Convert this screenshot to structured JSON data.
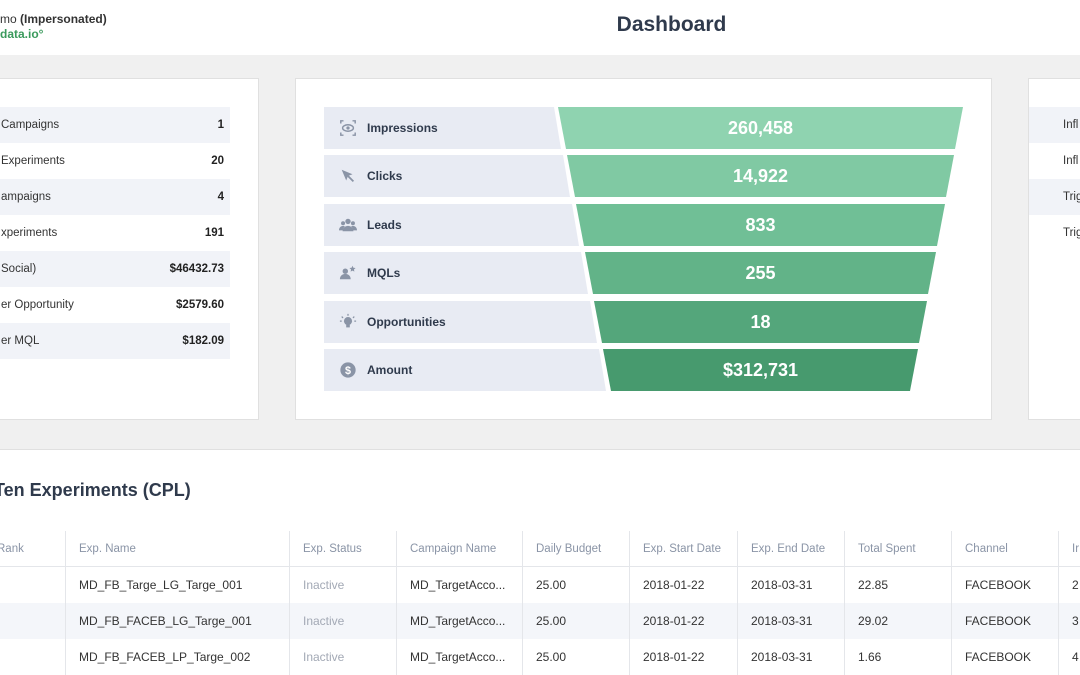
{
  "header": {
    "user_prefix": "mo",
    "user_suffix": "(Impersonated)",
    "domain": "data.io°",
    "title": "Dashboard"
  },
  "stats_left": [
    {
      "label": "Campaigns",
      "value": "1"
    },
    {
      "label": "Experiments",
      "value": "20"
    },
    {
      "label": "ampaigns",
      "value": "4"
    },
    {
      "label": "xperiments",
      "value": "191"
    },
    {
      "label": "Social)",
      "value": "$46432.73"
    },
    {
      "label": "er Opportunity",
      "value": "$2579.60"
    },
    {
      "label": "er MQL",
      "value": "$182.09"
    }
  ],
  "stats_right": [
    "Infl",
    "Infl",
    "Trig",
    "Trig"
  ],
  "funnel": [
    {
      "label": "Impressions",
      "value": "260,458",
      "icon": "eye-icon",
      "color": "#8fd3b0"
    },
    {
      "label": "Clicks",
      "value": "14,922",
      "icon": "cursor-icon",
      "color": "#80c9a3"
    },
    {
      "label": "Leads",
      "value": "833",
      "icon": "users-icon",
      "color": "#70bf96"
    },
    {
      "label": "MQLs",
      "value": "255",
      "icon": "user-star-icon",
      "color": "#62b388"
    },
    {
      "label": "Opportunities",
      "value": "18",
      "icon": "lightbulb-icon",
      "color": "#54a67b"
    },
    {
      "label": "Amount",
      "value": "$312,731",
      "icon": "dollar-icon",
      "color": "#479a6e"
    }
  ],
  "table": {
    "title": "Ten Experiments (CPL)",
    "columns": [
      "Rank",
      "Exp. Name",
      "Exp. Status",
      "Campaign Name",
      "Daily Budget",
      "Exp. Start Date",
      "Exp. End Date",
      "Total Spent",
      "Channel",
      "Ir"
    ],
    "rows": [
      [
        "",
        "MD_FB_Targe_LG_Targe_001",
        "Inactive",
        "MD_TargetAcco...",
        "25.00",
        "2018-01-22",
        "2018-03-31",
        "22.85",
        "FACEBOOK",
        "2"
      ],
      [
        "",
        "MD_FB_FACEB_LG_Targe_001",
        "Inactive",
        "MD_TargetAcco...",
        "25.00",
        "2018-01-22",
        "2018-03-31",
        "29.02",
        "FACEBOOK",
        "3"
      ],
      [
        "",
        "MD_FB_FACEB_LP_Targe_002",
        "Inactive",
        "MD_TargetAcco...",
        "25.00",
        "2018-01-22",
        "2018-03-31",
        "1.66",
        "FACEBOOK",
        "4"
      ]
    ]
  }
}
